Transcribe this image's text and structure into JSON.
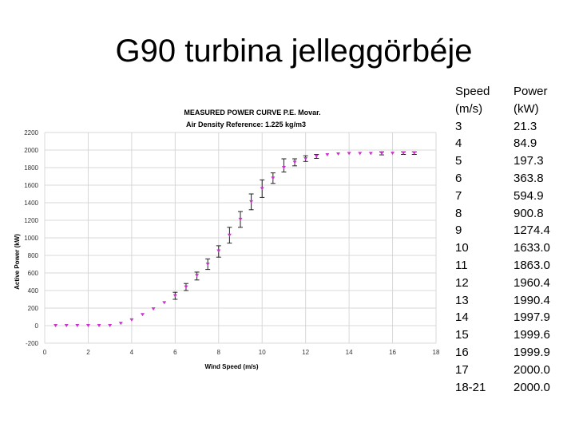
{
  "slide": {
    "title": "G90 turbina jelleggörbéje"
  },
  "chart_data": {
    "type": "scatter",
    "title": "MEASURED POWER CURVE  P.E. Movar.",
    "subtitle": "Air Density Reference: 1.225 kg/m3",
    "xlabel": "Wind Speed (m/s)",
    "ylabel": "Active Power (kW)",
    "xlim": [
      0,
      18
    ],
    "ylim": [
      -200,
      2200
    ],
    "xticks": [
      0,
      2,
      4,
      6,
      8,
      10,
      12,
      14,
      16,
      18
    ],
    "yticks": [
      -200,
      0,
      200,
      400,
      600,
      800,
      1000,
      1200,
      1400,
      1600,
      1800,
      2000,
      2200
    ],
    "grid": true,
    "marker_color": "#cc33cc",
    "errorbar_color": "#222222",
    "points": [
      {
        "x": 0.5,
        "y": 0
      },
      {
        "x": 1.0,
        "y": 0
      },
      {
        "x": 1.5,
        "y": 0
      },
      {
        "x": 2.0,
        "y": 0
      },
      {
        "x": 2.5,
        "y": 0
      },
      {
        "x": 3.0,
        "y": 0
      },
      {
        "x": 3.5,
        "y": 25
      },
      {
        "x": 4.0,
        "y": 65
      },
      {
        "x": 4.5,
        "y": 125
      },
      {
        "x": 5.0,
        "y": 190
      },
      {
        "x": 5.5,
        "y": 260
      },
      {
        "x": 6.0,
        "y": 340
      },
      {
        "x": 6.5,
        "y": 440
      },
      {
        "x": 7.0,
        "y": 570
      },
      {
        "x": 7.5,
        "y": 700
      },
      {
        "x": 8.0,
        "y": 850
      },
      {
        "x": 8.5,
        "y": 1030
      },
      {
        "x": 9.0,
        "y": 1210
      },
      {
        "x": 9.5,
        "y": 1410
      },
      {
        "x": 10.0,
        "y": 1560
      },
      {
        "x": 10.5,
        "y": 1680
      },
      {
        "x": 11.0,
        "y": 1800
      },
      {
        "x": 11.5,
        "y": 1860
      },
      {
        "x": 12.0,
        "y": 1900
      },
      {
        "x": 12.5,
        "y": 1930
      },
      {
        "x": 13.0,
        "y": 1945
      },
      {
        "x": 13.5,
        "y": 1955
      },
      {
        "x": 14.0,
        "y": 1960
      },
      {
        "x": 14.5,
        "y": 1960
      },
      {
        "x": 15.0,
        "y": 1960
      },
      {
        "x": 15.5,
        "y": 1962
      },
      {
        "x": 16.0,
        "y": 1962
      },
      {
        "x": 16.5,
        "y": 1965
      },
      {
        "x": 17.0,
        "y": 1965
      }
    ],
    "error_bars": [
      {
        "x": 6.0,
        "lo": 300,
        "hi": 380
      },
      {
        "x": 6.5,
        "lo": 400,
        "hi": 480
      },
      {
        "x": 7.0,
        "lo": 520,
        "hi": 610
      },
      {
        "x": 7.5,
        "lo": 640,
        "hi": 760
      },
      {
        "x": 8.0,
        "lo": 780,
        "hi": 910
      },
      {
        "x": 8.5,
        "lo": 940,
        "hi": 1120
      },
      {
        "x": 9.0,
        "lo": 1120,
        "hi": 1300
      },
      {
        "x": 9.5,
        "lo": 1320,
        "hi": 1500
      },
      {
        "x": 10.0,
        "lo": 1460,
        "hi": 1660
      },
      {
        "x": 10.5,
        "lo": 1620,
        "hi": 1740
      },
      {
        "x": 11.0,
        "lo": 1750,
        "hi": 1900
      },
      {
        "x": 11.5,
        "lo": 1820,
        "hi": 1900
      },
      {
        "x": 12.0,
        "lo": 1870,
        "hi": 1935
      },
      {
        "x": 12.5,
        "lo": 1905,
        "hi": 1950
      },
      {
        "x": 15.5,
        "lo": 1945,
        "hi": 1980
      },
      {
        "x": 16.5,
        "lo": 1950,
        "hi": 1980
      },
      {
        "x": 17.0,
        "lo": 1950,
        "hi": 1980
      }
    ]
  },
  "table": {
    "speed_header": [
      "Speed",
      "(m/s)"
    ],
    "power_header": [
      "Power",
      "(kW)"
    ],
    "speed": [
      "3",
      "4",
      "5",
      "6",
      "7",
      "8",
      "9",
      "10",
      "11",
      "12",
      "13",
      "14",
      "15",
      "16",
      "17",
      "18-21"
    ],
    "power": [
      "21.3",
      "84.9",
      "197.3",
      "363.8",
      "594.9",
      "900.8",
      "1274.4",
      "1633.0",
      "1863.0",
      "1960.4",
      "1990.4",
      "1997.9",
      "1999.6",
      "1999.9",
      "2000.0",
      "2000.0"
    ]
  }
}
